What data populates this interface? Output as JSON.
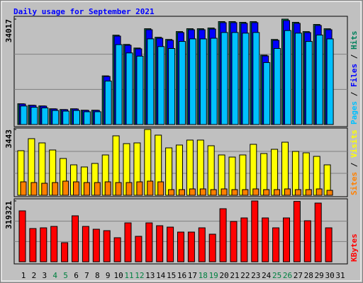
{
  "chart_data": {
    "type": "bar",
    "title": "Daily usage for September 2021",
    "categories": [
      "1",
      "2",
      "3",
      "4",
      "5",
      "6",
      "7",
      "8",
      "9",
      "10",
      "11",
      "12",
      "13",
      "14",
      "15",
      "16",
      "17",
      "18",
      "19",
      "20",
      "21",
      "22",
      "23",
      "24",
      "25",
      "26",
      "27",
      "28",
      "29",
      "30",
      "31"
    ],
    "highlight_indices": [
      3,
      4,
      10,
      11,
      17,
      18,
      24,
      25
    ],
    "highlight_color": "#008040",
    "legend_separator": " / ",
    "grid": true,
    "panels": [
      {
        "ylim": [
          0,
          34017
        ],
        "yticks": [
          34017
        ],
        "series": [
          {
            "name": "Hits",
            "color": "#00805c",
            "values": [
              6702,
              6231,
              6010,
              5090,
              4851,
              5088,
              4620,
              4619,
              15705,
              28840,
              25851,
              24690,
              30915,
              28150,
              27461,
              29996,
              30920,
              30917,
              31148,
              33217,
              33212,
              32990,
              33205,
              22390,
              27450,
              34017,
              32988,
              29992,
              32299,
              30905,
              null
            ]
          },
          {
            "name": "Files",
            "color": "#0000ff",
            "values": [
              6621,
              6164,
              5936,
              5023,
              4794,
              5023,
              4566,
              4566,
              15524,
              28538,
              25570,
              24428,
              30592,
              27853,
              27168,
              29679,
              30592,
              30592,
              30821,
              32876,
              32876,
              32647,
              32876,
              22145,
              27168,
              33560,
              32647,
              29679,
              31962,
              30592,
              null
            ]
          },
          {
            "name": "Pages",
            "color": "#00c0ff",
            "values": [
              5980,
              5570,
              5360,
              4540,
              4330,
              4540,
              4120,
              4125,
              14020,
              25780,
              23100,
              22070,
              27640,
              25160,
              24540,
              26810,
              27640,
              27630,
              27840,
              29700,
              29700,
              29490,
              29700,
              20000,
              24540,
              30320,
              29490,
              26810,
              28870,
              27630,
              null
            ]
          }
        ]
      },
      {
        "ylim": [
          0,
          3443
        ],
        "yticks": [
          3443
        ],
        "series": [
          {
            "name": "Visits",
            "color": "#ffff00",
            "values": [
              2332,
              2962,
              2740,
              2369,
              1925,
              1592,
              1481,
              1666,
              2110,
              3110,
              2703,
              2740,
              3443,
              3147,
              2480,
              2629,
              2888,
              2888,
              2592,
              2110,
              1999,
              2110,
              2666,
              2184,
              2406,
              2777,
              2295,
              2221,
              2036,
              1592,
              null
            ]
          },
          {
            "name": "Sites",
            "color": "#ff8000",
            "values": [
              703,
              666,
              629,
              666,
              740,
              703,
              666,
              666,
              703,
              666,
              666,
              703,
              740,
              703,
              296,
              296,
              333,
              333,
              296,
              333,
              296,
              296,
              333,
              296,
              296,
              333,
              296,
              296,
              333,
              259,
              null
            ]
          }
        ]
      },
      {
        "ylim": [
          0,
          319321
        ],
        "yticks": [
          319321
        ],
        "series": [
          {
            "name": "KBytes",
            "color": "#ff0000",
            "values": [
              267338,
              174512,
              178225,
              185652,
              100251,
              241348,
              185652,
              170800,
              163374,
              126243,
              204217,
              133669,
              204217,
              189365,
              181939,
              155948,
              155948,
              178225,
              144808,
              278478,
              211643,
              230209,
              319321,
              230209,
              178225,
              230209,
              317000,
              215356,
              308182,
              178225,
              null
            ]
          }
        ]
      }
    ]
  }
}
